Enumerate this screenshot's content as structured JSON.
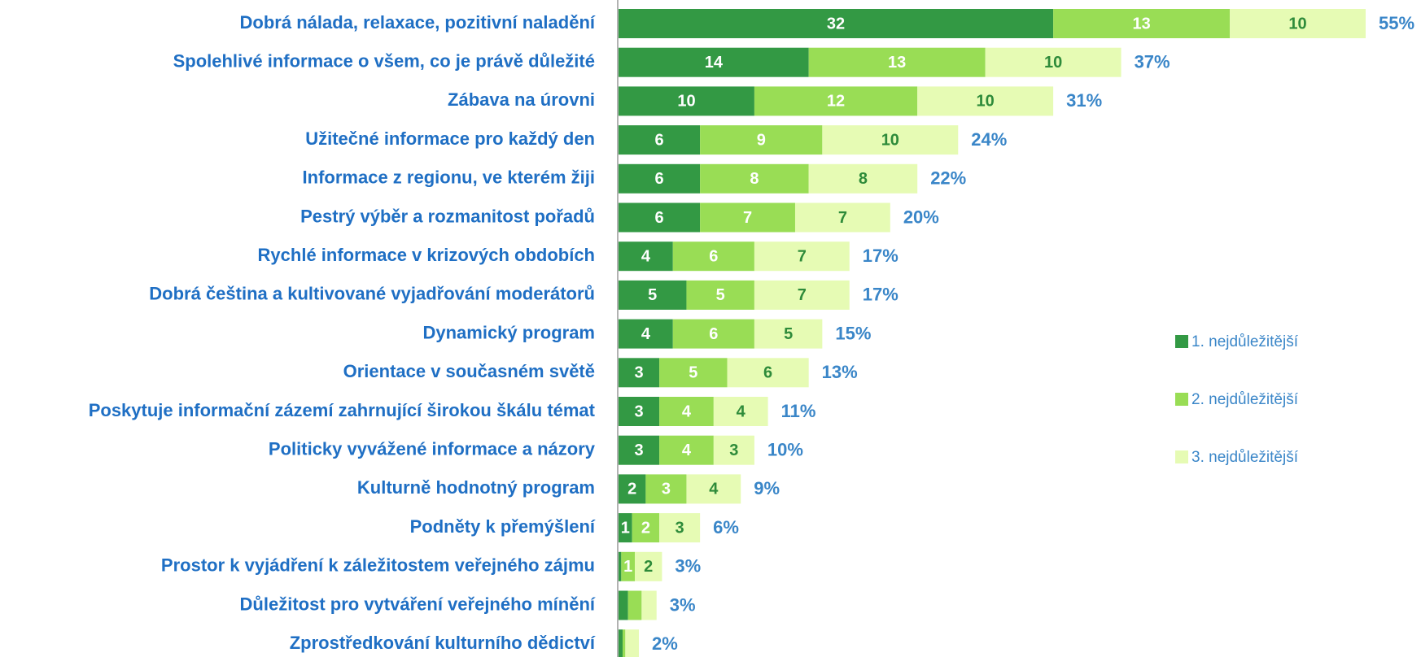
{
  "chart_data": {
    "type": "stacked-bar-horizontal",
    "categories": [
      "Dobrá nálada, relaxace, pozitivní naladění",
      "Spolehlivé informace o všem, co je právě důležité",
      "Zábava na úrovni",
      "Užitečné informace pro každý den",
      "Informace z regionu, ve kterém žiji",
      "Pestrý výběr a rozmanitost pořadů",
      "Rychlé informace v krizových obdobích",
      "Dobrá čeština a kultivované vyjadřování moderátorů",
      "Dynamický program",
      "Orientace v současném světě",
      "Poskytuje informační zázemí zahrnující širokou škálu témat",
      "Politicky vyvážené informace a názory",
      "Kulturně hodnotný program",
      "Podněty k přemýšlení",
      "Prostor k vyjádření k záležitostem veřejného zájmu",
      "Důležitost pro vytváření veřejného mínění",
      "Zprostředkování kulturního dědictví"
    ],
    "series": [
      {
        "name": "1. nejdůležitější",
        "color": "#339944",
        "label_color": "#ffffff",
        "values": [
          32,
          14,
          10,
          6,
          6,
          6,
          4,
          5,
          4,
          3,
          3,
          3,
          2,
          1,
          0.2,
          0.7,
          0.3
        ],
        "value_labels": [
          "32",
          "14",
          "10",
          "6",
          "6",
          "6",
          "4",
          "5",
          "4",
          "3",
          "3",
          "3",
          "2",
          "1",
          null,
          null,
          null
        ]
      },
      {
        "name": "2. nejdůležitější",
        "color": "#99dd55",
        "label_color": "#ffffff",
        "values": [
          13,
          13,
          12,
          9,
          8,
          7,
          6,
          5,
          6,
          5,
          4,
          4,
          3,
          2,
          1,
          1,
          0.2
        ],
        "value_labels": [
          "13",
          "13",
          "12",
          "9",
          "8",
          "7",
          "6",
          "5",
          "6",
          "5",
          "4",
          "4",
          "3",
          "2",
          "1",
          null,
          null
        ]
      },
      {
        "name": "3. nejdůležitější",
        "color": "#e6fbb4",
        "label_color": "#2e8b3a",
        "values": [
          10,
          10,
          10,
          10,
          8,
          7,
          7,
          7,
          5,
          6,
          4,
          3,
          4,
          3,
          2,
          1.1,
          1
        ],
        "value_labels": [
          "10",
          "10",
          "10",
          "10",
          "8",
          "7",
          "7",
          "7",
          "5",
          "6",
          "4",
          "3",
          "4",
          "3",
          "2",
          null,
          null
        ]
      }
    ],
    "totals": {
      "values": [
        55,
        37,
        31,
        24,
        22,
        20,
        17,
        17,
        15,
        13,
        11,
        10,
        9,
        6,
        3,
        3,
        2
      ],
      "value_labels": [
        "55%",
        "37%",
        "31%",
        "24%",
        "22%",
        "20%",
        "17%",
        "17%",
        "15%",
        "13%",
        "11%",
        "10%",
        "9%",
        "6%",
        "3%",
        "3%",
        "2%"
      ]
    },
    "xlim": [
      0,
      55
    ]
  }
}
